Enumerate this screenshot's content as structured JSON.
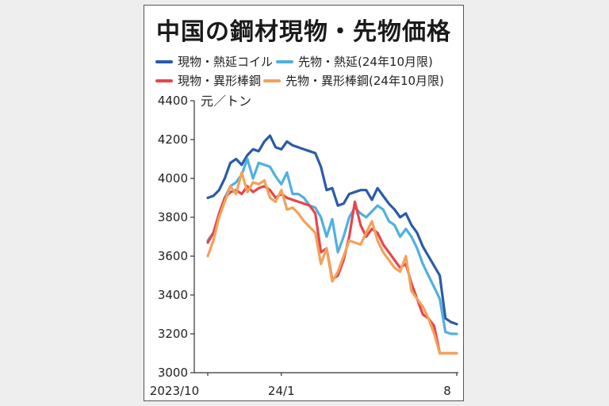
{
  "chart_data": {
    "type": "line",
    "title": "中国の鋼材現物・先物価格",
    "unit_label": "元／トン",
    "ylim": [
      3000,
      4400
    ],
    "yticks": [
      3000,
      3200,
      3400,
      3600,
      3800,
      4000,
      4200,
      4400
    ],
    "x_tick_labels": [
      {
        "label": "2023/10",
        "t": 0
      },
      {
        "label": "24/1",
        "t": 13
      },
      {
        "label": "8",
        "t": 44
      }
    ],
    "x_count": 45,
    "legend_placement": "top",
    "series": [
      {
        "name": "現物・熱延コイル",
        "color": "#2b5ba8",
        "values": [
          3900,
          3910,
          3940,
          4000,
          4080,
          4100,
          4070,
          4120,
          4150,
          4140,
          4190,
          4220,
          4160,
          4150,
          4190,
          4170,
          4160,
          4150,
          4140,
          4130,
          4060,
          3940,
          3950,
          3860,
          3870,
          3920,
          3930,
          3940,
          3940,
          3890,
          3950,
          3910,
          3870,
          3840,
          3800,
          3820,
          3760,
          3720,
          3650,
          3600,
          3550,
          3500,
          3280,
          3260,
          3250
        ]
      },
      {
        "name": "先物・熱延(24年10月限)",
        "color": "#4fb0df",
        "values": [
          3680,
          3720,
          3800,
          3900,
          3960,
          3980,
          4020,
          4100,
          4000,
          4080,
          4070,
          4060,
          4010,
          3970,
          4030,
          3920,
          3920,
          3900,
          3860,
          3850,
          3800,
          3700,
          3790,
          3620,
          3700,
          3800,
          3850,
          3820,
          3800,
          3830,
          3860,
          3840,
          3780,
          3760,
          3700,
          3740,
          3700,
          3640,
          3560,
          3500,
          3440,
          3380,
          3210,
          3200,
          3200
        ]
      },
      {
        "name": "現物・異形棒鋼",
        "color": "#e8454a",
        "values": [
          3670,
          3720,
          3820,
          3900,
          3930,
          3940,
          3920,
          3960,
          3930,
          3950,
          3960,
          3940,
          3900,
          3920,
          3900,
          3890,
          3880,
          3870,
          3860,
          3820,
          3620,
          3640,
          3480,
          3500,
          3580,
          3700,
          3880,
          3760,
          3700,
          3740,
          3720,
          3660,
          3620,
          3580,
          3540,
          3560,
          3460,
          3380,
          3300,
          3280,
          3240,
          3100,
          3100,
          3100,
          3100
        ]
      },
      {
        "name": "先物・異形棒鋼(24年10月限)",
        "color": "#f2a25a",
        "values": [
          3600,
          3680,
          3800,
          3880,
          3960,
          3920,
          4030,
          3930,
          3980,
          3970,
          3990,
          3900,
          3880,
          3940,
          3840,
          3850,
          3820,
          3780,
          3750,
          3720,
          3560,
          3640,
          3470,
          3520,
          3600,
          3680,
          3670,
          3660,
          3720,
          3780,
          3680,
          3620,
          3580,
          3540,
          3520,
          3600,
          3420,
          3380,
          3340,
          3280,
          3200,
          3100,
          3100,
          3100,
          3100
        ]
      }
    ]
  }
}
